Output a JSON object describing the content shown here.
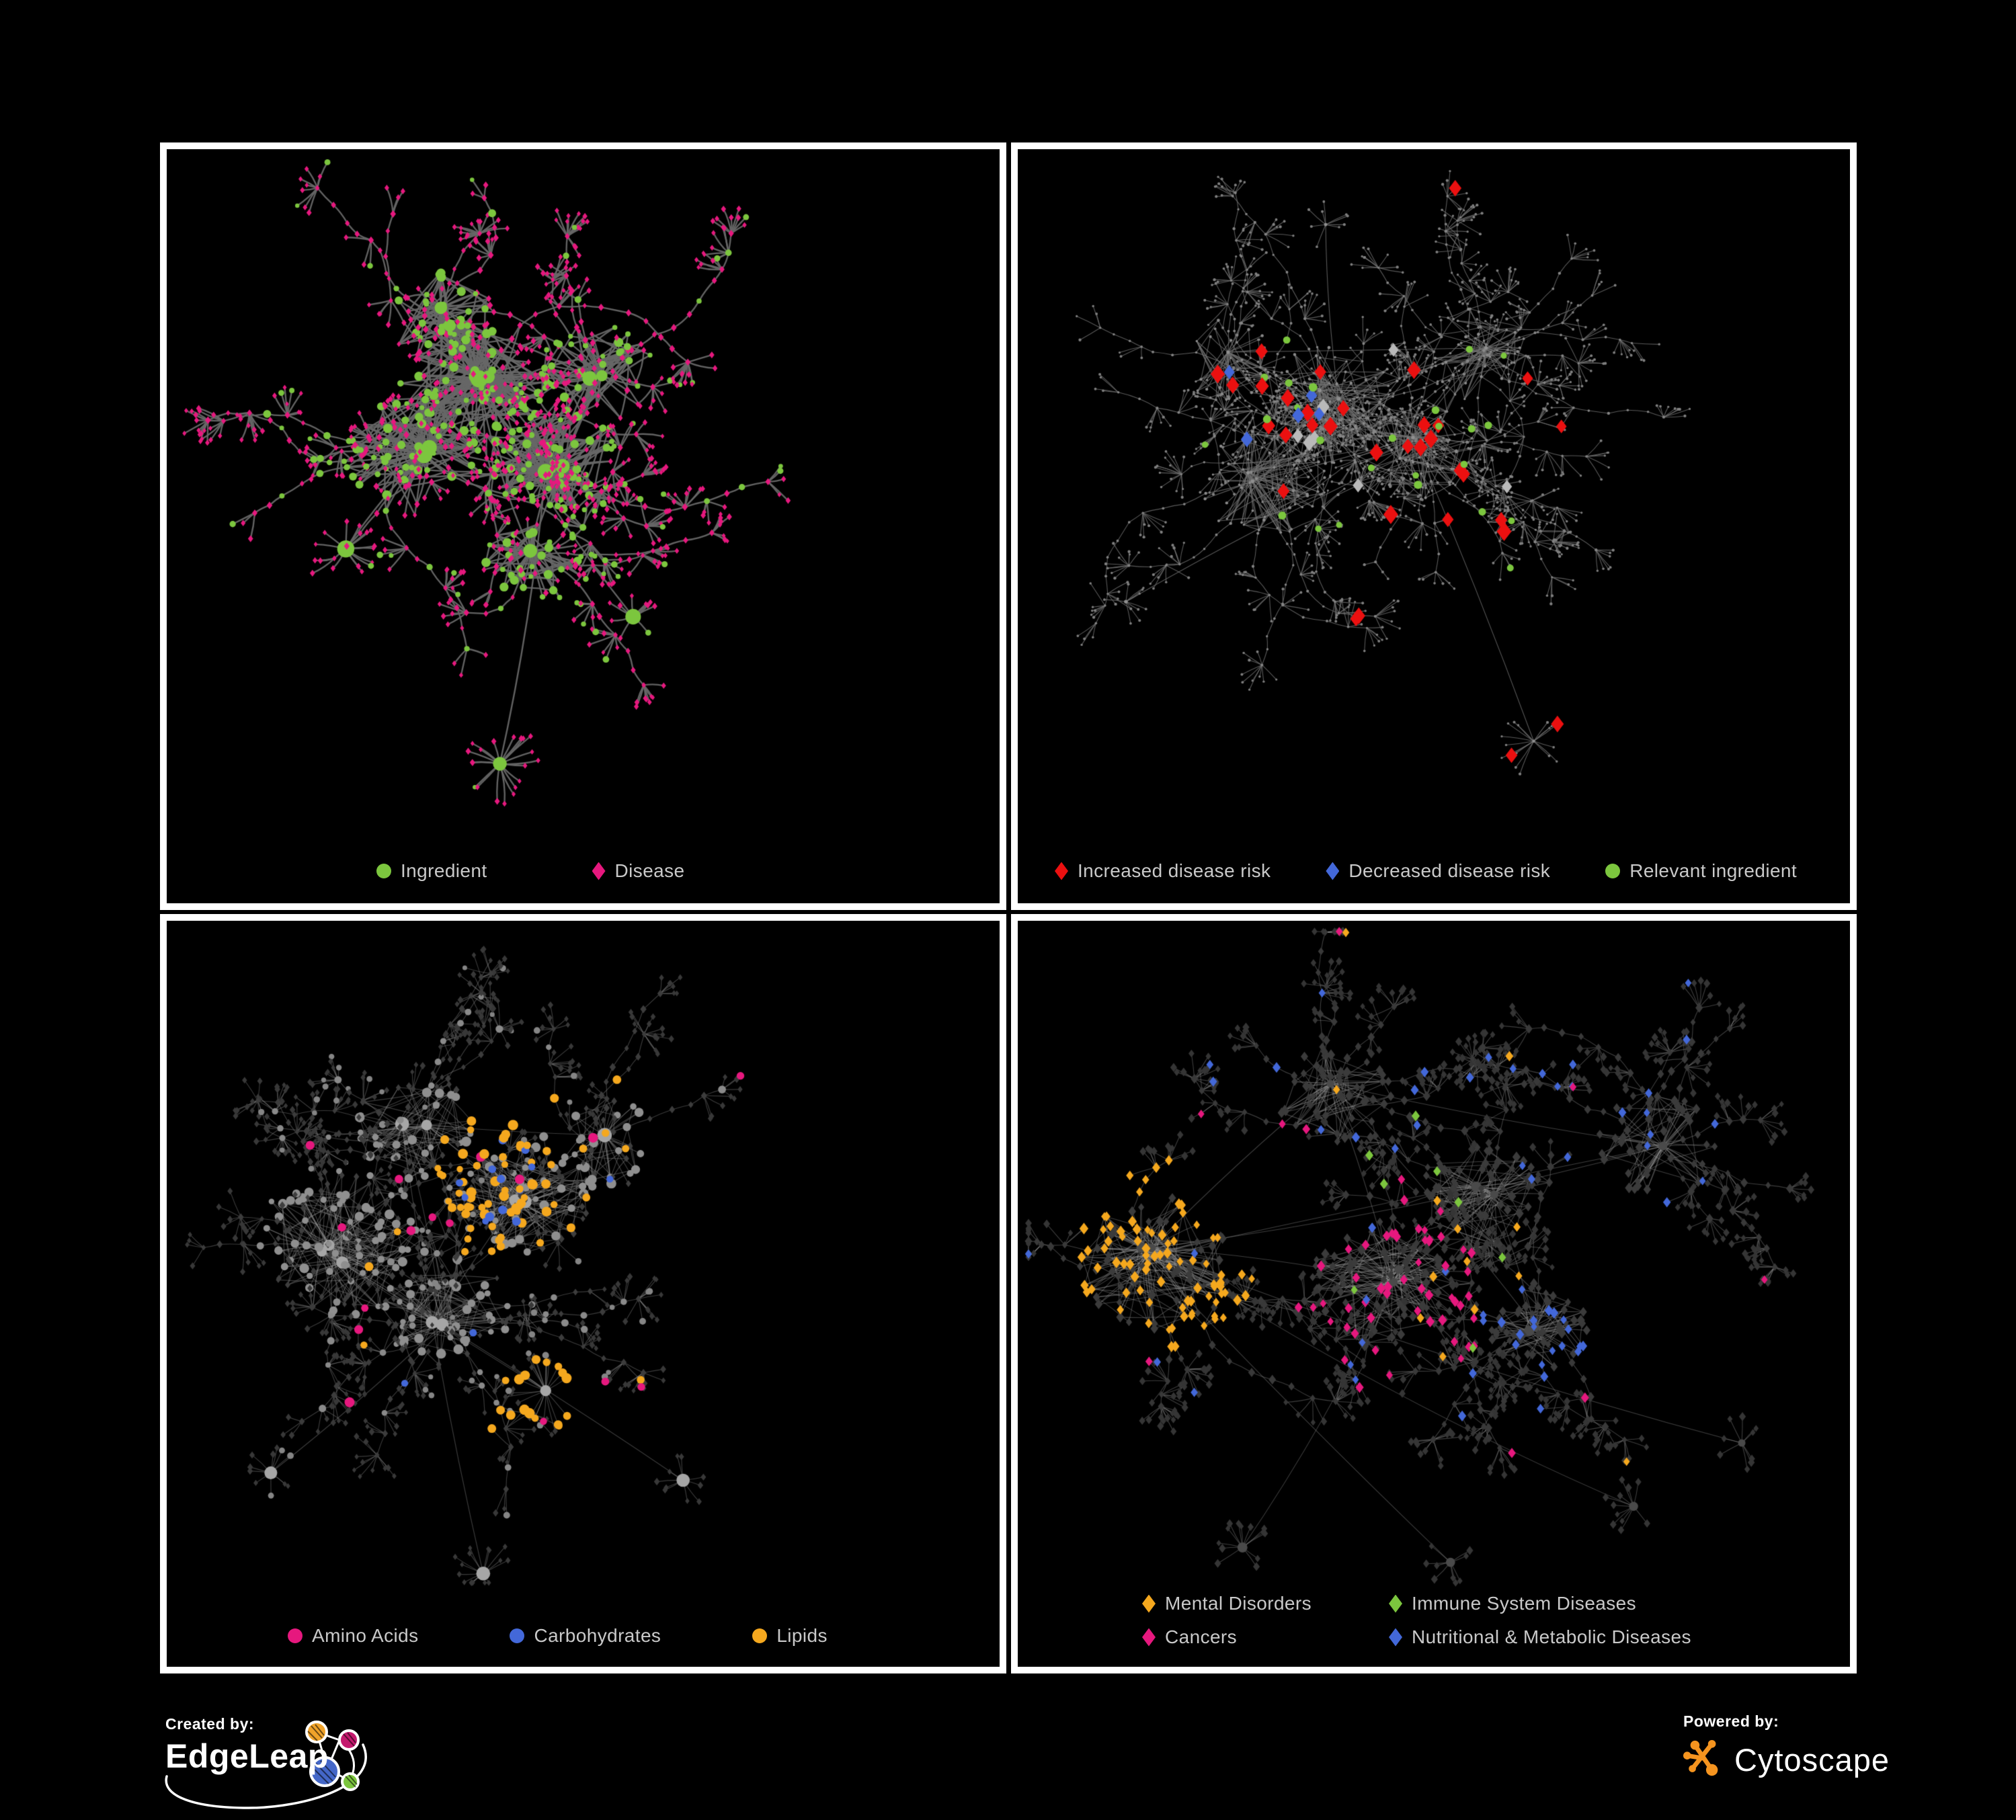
{
  "colors": {
    "background": "#000000",
    "panel_border": "#ffffff",
    "legend_text": "#c9c9c9",
    "green": "#7cc63e",
    "magenta": "#e6187e",
    "red": "#eb1010",
    "blue": "#4368d9",
    "orange": "#f5a81e",
    "silver": "#b9b9b9",
    "cytoscape_orange": "#f5941f"
  },
  "panels": {
    "ingredient_disease": {
      "legend": [
        {
          "label": "Ingredient",
          "shape": "circle",
          "color": "#7cc63e"
        },
        {
          "label": "Disease",
          "shape": "diamond",
          "color": "#e6187e"
        }
      ]
    },
    "disease_risk": {
      "legend": [
        {
          "label": "Increased disease risk",
          "shape": "diamond",
          "color": "#eb1010"
        },
        {
          "label": "Decreased disease risk",
          "shape": "diamond",
          "color": "#4368d9"
        },
        {
          "label": "Relevant ingredient",
          "shape": "circle",
          "color": "#7cc63e"
        }
      ]
    },
    "nutrient_classes": {
      "legend": [
        {
          "label": "Amino Acids",
          "shape": "circle",
          "color": "#e6187e"
        },
        {
          "label": "Carbohydrates",
          "shape": "circle",
          "color": "#4368d9"
        },
        {
          "label": "Lipids",
          "shape": "circle",
          "color": "#f5a81e"
        }
      ]
    },
    "disease_categories": {
      "legend": [
        {
          "label": "Mental Disorders",
          "shape": "diamond",
          "color": "#f5a81e"
        },
        {
          "label": "Immune System Diseases",
          "shape": "diamond",
          "color": "#7cc63e"
        },
        {
          "label": "Cancers",
          "shape": "diamond",
          "color": "#e6187e"
        },
        {
          "label": "Nutritional & Metabolic Diseases",
          "shape": "diamond",
          "color": "#4368d9"
        }
      ]
    }
  },
  "footer": {
    "created_by_label": "Created by:",
    "created_by_name": "EdgeLeap",
    "powered_by_label": "Powered by:",
    "powered_by_name": "Cytoscape"
  },
  "chart_data": {
    "type": "network",
    "description": "Four views of an ingredient-disease association network rendered in Cytoscape on black panels. Top-left: all nodes colored (green circle ingredients, magenta diamond diseases). Top-right: dimmed network with highlighted red/blue/silver diamonds (disease-risk direction) and green relevant-ingredient circles. Bottom-left: ingredient nodes colored by nutrient class (amino acids pink, carbohydrates blue, lipids orange) over gray network. Bottom-right: disease diamonds colored by category (mental orange, immune green, cancers pink, nutritional & metabolic blue) over dark-gray network.",
    "networks": {
      "ingredient_disease": {
        "seed": 11,
        "edge": {
          "color": "#676767",
          "alpha": 0.95,
          "width": 2.4,
          "curve": 0.1
        },
        "clusters": [
          [
            0.37,
            0.3,
            110,
            115
          ],
          [
            0.295,
            0.405,
            95,
            105
          ],
          [
            0.465,
            0.41,
            85,
            95
          ],
          [
            0.33,
            0.225,
            55,
            80
          ],
          [
            0.52,
            0.295,
            55,
            85
          ],
          [
            0.44,
            0.545,
            45,
            75
          ]
        ],
        "stars": [
          [
            0.4,
            0.815,
            20,
            62
          ],
          [
            0.215,
            0.53,
            13,
            48
          ],
          [
            0.56,
            0.62,
            10,
            42
          ]
        ],
        "branches": {
          "count": 36,
          "lenMin": 3,
          "lenMax": 9,
          "step": 30,
          "subProb": 0.35,
          "fanMin": 3,
          "fanMax": 8
        },
        "roles": {
          "hub": {
            "shape": "circle",
            "color": "#7cc63e",
            "r": [
              8,
              13
            ]
          },
          "core": {
            "mix": [
              [
                0.45,
                "circle",
                "#7cc63e",
                [
                  3.5,
                  7
                ]
              ],
              [
                0.55,
                "diamond",
                "#e6187e",
                [
                  3.2,
                  4.6
                ]
              ]
            ]
          },
          "branch": {
            "mix": [
              [
                0.18,
                "circle",
                "#7cc63e",
                [
                  3.5,
                  6
                ]
              ],
              [
                0.82,
                "diamond",
                "#e6187e",
                [
                  3.2,
                  4.6
                ]
              ]
            ]
          },
          "leaf": {
            "mix": [
              [
                0.12,
                "circle",
                "#7cc63e",
                [
                  3.2,
                  5
                ]
              ],
              [
                0.88,
                "diamond",
                "#e6187e",
                [
                  3.0,
                  4.2
                ]
              ]
            ]
          }
        },
        "highlights": []
      },
      "disease_risk": {
        "seed": 23,
        "edge": {
          "color": "#6f6f6f",
          "alpha": 0.8,
          "width": 1.1,
          "curve": 0.05
        },
        "clusters": [
          [
            0.38,
            0.34,
            85,
            105
          ],
          [
            0.295,
            0.44,
            70,
            95
          ],
          [
            0.475,
            0.395,
            70,
            90
          ],
          [
            0.55,
            0.27,
            50,
            80
          ],
          [
            0.25,
            0.28,
            40,
            70
          ]
        ],
        "stars": [
          [
            0.62,
            0.785,
            17,
            55
          ],
          [
            0.37,
            0.1,
            9,
            36
          ],
          [
            0.13,
            0.6,
            9,
            38
          ]
        ],
        "branches": {
          "count": 62,
          "lenMin": 4,
          "lenMax": 10,
          "step": 26,
          "subProb": 0.45,
          "fanMin": 3,
          "fanMax": 7
        },
        "roles": {
          "hub": {
            "shape": "circle",
            "color": "#8f8f8f",
            "r": [
              2.2,
              3.0
            ]
          },
          "core": {
            "shape": "circle",
            "color": "#8a8a8a",
            "r": [
              1.6,
              2.4
            ]
          },
          "branch": {
            "shape": "circle",
            "color": "#848484",
            "r": [
              1.6,
              2.2
            ]
          },
          "leaf": {
            "shape": "circle",
            "color": "#7f7f7f",
            "r": [
              1.6,
              2.2
            ]
          }
        },
        "highlights": [
          {
            "shape": "diamond",
            "color": "#eb1010",
            "count": 26,
            "r": [
              8.5,
              11.5
            ],
            "at": [
              0.42,
              0.42,
              0.22
            ]
          },
          {
            "shape": "diamond",
            "color": "#eb1010",
            "count": 5,
            "r": [
              8,
              10.5
            ],
            "at": null
          },
          {
            "shape": "diamond",
            "color": "#eb1010",
            "count": 2,
            "r": [
              8,
              10
            ],
            "at": [
              0.63,
              0.76,
              0.06
            ]
          },
          {
            "shape": "diamond",
            "color": "#4368d9",
            "count": 5,
            "r": [
              8,
              10
            ],
            "at": [
              0.27,
              0.33,
              0.1
            ]
          },
          {
            "shape": "diamond",
            "color": "#4368d9",
            "count": 2,
            "r": [
              8,
              9.5
            ],
            "at": [
              0.895,
              0.36,
              0.03
            ]
          },
          {
            "shape": "diamond",
            "color": "#b9b9b9",
            "count": 7,
            "r": [
              8,
              10
            ],
            "at": [
              0.45,
              0.45,
              0.22
            ]
          },
          {
            "shape": "circle",
            "color": "#7cc63e",
            "count": 21,
            "r": [
              4.5,
              6.5
            ],
            "at": [
              0.38,
              0.4,
              0.2
            ]
          },
          {
            "shape": "circle",
            "color": "#7cc63e",
            "count": 4,
            "r": [
              4.5,
              6
            ],
            "at": null
          }
        ]
      },
      "nutrient_classes": {
        "seed": 37,
        "edge": {
          "color": "#9c9c9c",
          "alpha": 0.38,
          "width": 1.15,
          "curve": 0.05
        },
        "clusters": [
          [
            0.21,
            0.43,
            115,
            125
          ],
          [
            0.335,
            0.52,
            70,
            95
          ],
          [
            0.43,
            0.365,
            95,
            100
          ],
          [
            0.3,
            0.275,
            55,
            90
          ],
          [
            0.53,
            0.3,
            40,
            75
          ]
        ],
        "stars": [
          [
            0.455,
            0.63,
            26,
            62
          ],
          [
            0.38,
            0.875,
            16,
            52
          ],
          [
            0.125,
            0.74,
            11,
            42
          ],
          [
            0.62,
            0.75,
            10,
            40
          ]
        ],
        "branches": {
          "count": 42,
          "lenMin": 3,
          "lenMax": 8,
          "step": 28,
          "subProb": 0.4,
          "fanMin": 3,
          "fanMax": 7
        },
        "roles": {
          "hub": {
            "shape": "circle",
            "color": "#a6a6a6",
            "r": [
              7,
              11
            ]
          },
          "core": {
            "mix": [
              [
                0.5,
                "circle",
                "#8f8f8f",
                [
                  4,
                  7.5
                ]
              ],
              [
                0.5,
                "diamond",
                "#3e3e3e",
                [
                  3.4,
                  5
                ]
              ]
            ]
          },
          "branch": {
            "mix": [
              [
                0.22,
                "circle",
                "#8a8a8a",
                [
                  4,
                  6
                ]
              ],
              [
                0.78,
                "diamond",
                "#3c3c3c",
                [
                  3.4,
                  5
                ]
              ]
            ]
          },
          "leaf": {
            "mix": [
              [
                0.1,
                "circle",
                "#858585",
                [
                  3.5,
                  5
                ]
              ],
              [
                0.9,
                "diamond",
                "#383838",
                [
                  3.2,
                  4.6
                ]
              ]
            ]
          }
        },
        "highlights": [
          {
            "shape": "circle",
            "color": "#f5a81e",
            "count": 55,
            "r": [
              5,
              8
            ],
            "at": [
              0.42,
              0.36,
              0.1
            ]
          },
          {
            "shape": "circle",
            "color": "#f5a81e",
            "count": 16,
            "r": [
              5,
              8
            ],
            "at": [
              0.46,
              0.625,
              0.07
            ]
          },
          {
            "shape": "circle",
            "color": "#f5a81e",
            "count": 16,
            "r": [
              4.5,
              7
            ],
            "at": null
          },
          {
            "shape": "circle",
            "color": "#4368d9",
            "count": 12,
            "r": [
              5,
              7
            ],
            "at": [
              0.42,
              0.335,
              0.08
            ]
          },
          {
            "shape": "circle",
            "color": "#4368d9",
            "count": 3,
            "r": [
              4.5,
              6
            ],
            "at": null
          },
          {
            "shape": "circle",
            "color": "#e6187e",
            "count": 16,
            "r": [
              5,
              7.5
            ],
            "at": null
          }
        ]
      },
      "disease_categories": {
        "seed": 51,
        "edge": {
          "color": "#9a9a9a",
          "alpha": 0.4,
          "width": 1.1,
          "curve": 0.05
        },
        "clusters": [
          [
            0.165,
            0.46,
            115,
            115
          ],
          [
            0.44,
            0.49,
            105,
            110
          ],
          [
            0.555,
            0.375,
            75,
            95
          ],
          [
            0.625,
            0.545,
            55,
            75
          ],
          [
            0.38,
            0.235,
            50,
            85
          ],
          [
            0.77,
            0.3,
            45,
            90
          ]
        ],
        "stars": [
          [
            0.27,
            0.84,
            13,
            48
          ],
          [
            0.74,
            0.785,
            11,
            44
          ],
          [
            0.87,
            0.7,
            9,
            40
          ],
          [
            0.52,
            0.86,
            9,
            38
          ]
        ],
        "branches": {
          "count": 48,
          "lenMin": 3,
          "lenMax": 9,
          "step": 27,
          "subProb": 0.4,
          "fanMin": 3,
          "fanMax": 7
        },
        "roles": {
          "hub": {
            "shape": "circle",
            "color": "#4a4a4a",
            "r": [
              5,
              8
            ]
          },
          "core": {
            "shape": "diamond",
            "color": "#3b3b3b",
            "r": [
              4.5,
              6.5
            ]
          },
          "branch": {
            "shape": "diamond",
            "color": "#393939",
            "r": [
              4,
              6
            ]
          },
          "leaf": {
            "shape": "diamond",
            "color": "#353535",
            "r": [
              3.8,
              5.5
            ]
          }
        },
        "highlights": [
          {
            "shape": "diamond",
            "color": "#f5a81e",
            "count": 85,
            "r": [
              5,
              7
            ],
            "at": [
              0.165,
              0.45,
              0.12
            ]
          },
          {
            "shape": "diamond",
            "color": "#f5a81e",
            "count": 14,
            "r": [
              5,
              6.5
            ],
            "at": null
          },
          {
            "shape": "diamond",
            "color": "#e6187e",
            "count": 48,
            "r": [
              5,
              7
            ],
            "at": [
              0.45,
              0.5,
              0.12
            ]
          },
          {
            "shape": "diamond",
            "color": "#e6187e",
            "count": 14,
            "r": [
              5,
              6.5
            ],
            "at": null
          },
          {
            "shape": "diamond",
            "color": "#4368d9",
            "count": 16,
            "r": [
              5,
              7
            ],
            "at": [
              0.62,
              0.53,
              0.07
            ]
          },
          {
            "shape": "diamond",
            "color": "#4368d9",
            "count": 16,
            "r": [
              5,
              6.5
            ],
            "at": [
              0.72,
              0.22,
              0.16
            ]
          },
          {
            "shape": "diamond",
            "color": "#4368d9",
            "count": 30,
            "r": [
              5,
              6.5
            ],
            "at": null
          },
          {
            "shape": "diamond",
            "color": "#7cc63e",
            "count": 8,
            "r": [
              5,
              6.5
            ],
            "at": [
              0.5,
              0.42,
              0.18
            ]
          }
        ]
      }
    }
  }
}
